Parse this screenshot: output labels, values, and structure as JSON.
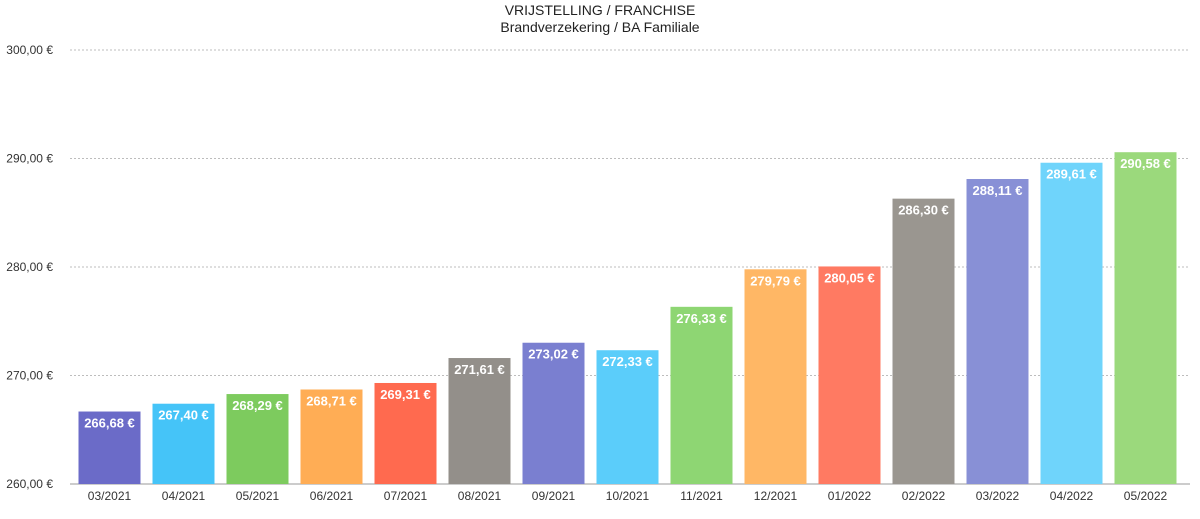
{
  "chart_data": {
    "type": "bar",
    "title": "VRIJSTELLING / FRANCHISE",
    "subtitle": "Brandverzekering / BA Familiale",
    "categories": [
      "03/2021",
      "04/2021",
      "05/2021",
      "06/2021",
      "07/2021",
      "08/2021",
      "09/2021",
      "10/2021",
      "11/2021",
      "12/2021",
      "01/2022",
      "02/2022",
      "03/2022",
      "04/2022",
      "05/2022"
    ],
    "values": [
      266.68,
      267.4,
      268.29,
      268.71,
      269.31,
      271.61,
      273.02,
      272.33,
      276.33,
      279.79,
      280.05,
      286.3,
      288.11,
      289.61,
      290.58
    ],
    "value_labels": [
      "266,68 €",
      "267,40 €",
      "268,29 €",
      "268,71 €",
      "269,31 €",
      "271,61 €",
      "273,02 €",
      "272,33 €",
      "276,33 €",
      "279,79 €",
      "280,05 €",
      "286,30 €",
      "288,11 €",
      "289,61 €",
      "290,58 €"
    ],
    "colors": [
      "#6b6bc8",
      "#45c4f8",
      "#7dcb5e",
      "#ffad55",
      "#ff6a4f",
      "#938f8a",
      "#7a7fd0",
      "#5bcdfa",
      "#8ed673",
      "#ffb765",
      "#ff7a62",
      "#9a9690",
      "#8890d6",
      "#6fd4fb",
      "#9bd97c"
    ],
    "ylim": [
      260,
      300
    ],
    "yticks": [
      260,
      270,
      280,
      290,
      300
    ],
    "ytick_labels": [
      "260,00 €",
      "270,00 €",
      "280,00 €",
      "290,00 €",
      "300,00 €"
    ],
    "grid": true,
    "xlabel": "",
    "ylabel": ""
  }
}
